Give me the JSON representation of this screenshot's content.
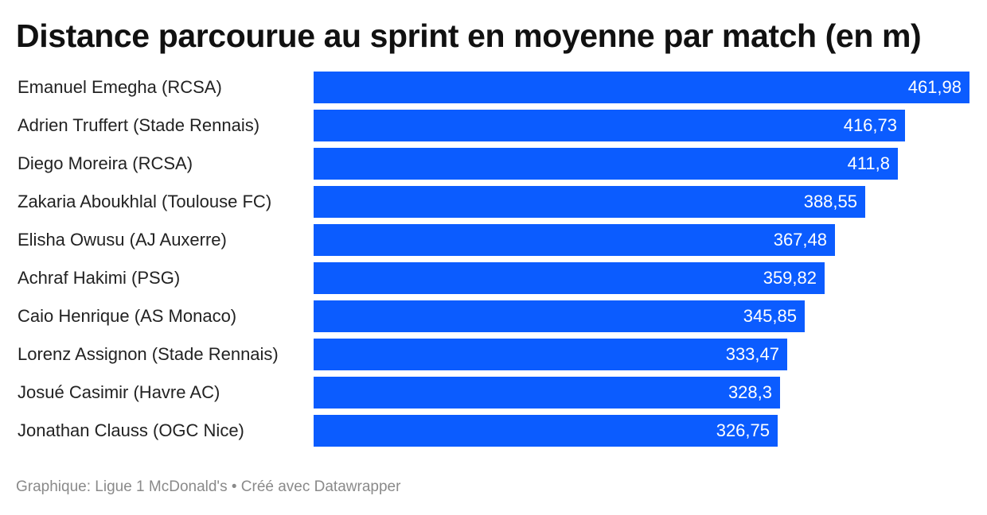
{
  "chart_data": {
    "type": "bar",
    "orientation": "horizontal",
    "title": "Distance parcourue au sprint en moyenne par match (en m)",
    "categories": [
      "Emanuel Emegha (RCSA)",
      "Adrien Truffert (Stade Rennais)",
      "Diego Moreira (RCSA)",
      "Zakaria Aboukhlal (Toulouse FC)",
      "Elisha Owusu (AJ Auxerre)",
      "Achraf Hakimi (PSG)",
      "Caio Henrique (AS Monaco)",
      "Lorenz Assignon (Stade Rennais)",
      "Josué Casimir (Havre AC)",
      "Jonathan Clauss (OGC Nice)"
    ],
    "values": [
      461.98,
      416.73,
      411.8,
      388.55,
      367.48,
      359.82,
      345.85,
      333.47,
      328.3,
      326.75
    ],
    "value_labels": [
      "461,98",
      "416,73",
      "411,8",
      "388,55",
      "367,48",
      "359,82",
      "345,85",
      "333,47",
      "328,3",
      "326,75"
    ],
    "xlim": [
      0,
      461.98
    ],
    "bar_color": "#0b5cff",
    "grid": false,
    "legend": "none"
  },
  "footer": {
    "text": "Graphique: Ligue 1 McDonald's • Créé avec Datawrapper"
  }
}
